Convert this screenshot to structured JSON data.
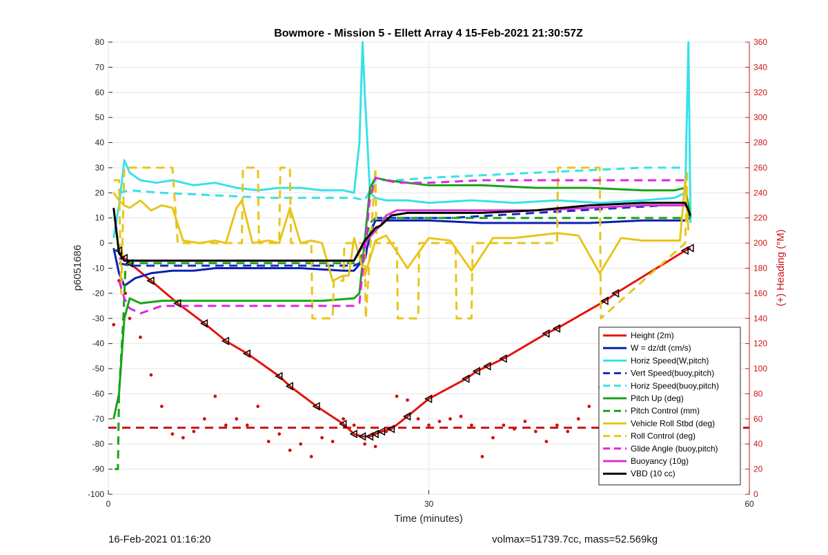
{
  "chart_data": {
    "type": "line",
    "title": "Bowmore - Mission 5 - Ellett Array 4 15-Feb-2021 21:30:57Z",
    "xlabel": "Time (minutes)",
    "ylabel": "p6051686",
    "y2label": "(+) Heading (°M)",
    "xlim": [
      0,
      60
    ],
    "ylim": [
      -100,
      80
    ],
    "y2lim": [
      0,
      360
    ],
    "x_ticks": [
      0,
      30,
      60
    ],
    "y_ticks": [
      -100,
      -90,
      -80,
      -70,
      -60,
      -50,
      -40,
      -30,
      -20,
      -10,
      0,
      10,
      20,
      30,
      40,
      50,
      60,
      70,
      80
    ],
    "y2_ticks": [
      0,
      20,
      40,
      60,
      80,
      100,
      120,
      140,
      160,
      180,
      200,
      220,
      240,
      260,
      280,
      300,
      320,
      340,
      360
    ],
    "grid": true,
    "legend_position": "bottom-right",
    "series": [
      {
        "name": "Height (2m)",
        "color": "#e3120b",
        "style": "solid",
        "x": [
          1.0,
          1.5,
          2.0,
          4.0,
          6.5,
          9.0,
          11.0,
          13.0,
          16.0,
          17.0,
          19.5,
          22.0,
          23.0,
          23.8,
          24.5,
          25.0,
          25.6,
          26.5,
          28.0,
          30.0,
          33.5,
          34.5,
          35.5,
          37.0,
          41.0,
          42.0,
          46.5,
          47.5,
          54.0,
          54.5
        ],
        "y": [
          -3,
          -6,
          -8,
          -15,
          -24,
          -32,
          -39,
          -44,
          -53,
          -57,
          -65,
          -72,
          -76,
          -77,
          -77,
          -76,
          -75,
          -74,
          -69,
          -62,
          -54,
          -51,
          -49,
          -46,
          -36,
          -34,
          -23,
          -20,
          -3,
          -2
        ]
      },
      {
        "name": "W = dz/dt (cm/s)",
        "color": "#0b1fb0",
        "style": "solid",
        "x": [
          0.5,
          1.0,
          1.5,
          2.5,
          4.0,
          6.0,
          8.0,
          10.0,
          14.0,
          18.0,
          22.0,
          23.0,
          24.0,
          24.6,
          25.0,
          27.0,
          30.0,
          35.0,
          40.0,
          45.0,
          50.0,
          54.0,
          54.5
        ],
        "y": [
          -2,
          -12,
          -17,
          -14,
          -12,
          -11,
          -11,
          -10,
          -10,
          -10,
          -11,
          -11,
          -6,
          5,
          9,
          9,
          9,
          8,
          8,
          8,
          9,
          9,
          10
        ]
      },
      {
        "name": "Horiz Speed(W,pitch)",
        "color": "#36e2e8",
        "style": "solid",
        "x": [
          0.5,
          1.0,
          1.5,
          2.0,
          3.0,
          4.5,
          6.0,
          8.0,
          10.0,
          12.0,
          14.0,
          16.0,
          18.0,
          20.0,
          22.0,
          23.0,
          23.5,
          23.8,
          24.0,
          24.5,
          25.0,
          26.0,
          28.0,
          30.0,
          34.0,
          38.0,
          42.0,
          46.0,
          50.0,
          53.0,
          54.0,
          54.3,
          54.5
        ],
        "y": [
          2,
          15,
          33,
          28,
          25,
          24,
          25,
          23,
          24,
          22,
          21,
          22,
          22,
          21,
          21,
          20,
          40,
          80,
          60,
          20,
          18,
          17,
          17,
          16,
          17,
          16,
          17,
          16,
          17,
          18,
          20,
          80,
          8
        ]
      },
      {
        "name": "Vert Speed(buoy,pitch)",
        "color": "#1428c8",
        "style": "dashed",
        "x": [
          1.0,
          2.0,
          5.0,
          10.0,
          15.0,
          20.0,
          23.0,
          24.0,
          24.6,
          25.0,
          28.0,
          32.0,
          36.0,
          40.0,
          44.0,
          48.0,
          52.0,
          54.0,
          54.5
        ],
        "y": [
          -8,
          -9,
          -9,
          -9,
          -9,
          -9,
          -9,
          -7,
          5,
          10,
          10,
          10,
          11,
          12,
          13,
          14,
          15,
          15,
          10
        ]
      },
      {
        "name": "Horiz Speed(buoy,pitch)",
        "color": "#36e2e8",
        "style": "dashed",
        "x": [
          1.0,
          2.0,
          5.0,
          10.0,
          15.0,
          20.0,
          23.0,
          24.0,
          25.0,
          27.0,
          30.0,
          35.0,
          40.0,
          45.0,
          50.0,
          54.0
        ],
        "y": [
          20,
          21,
          20,
          19,
          18,
          18,
          18,
          17,
          25,
          25,
          26,
          27,
          28,
          29,
          30,
          30
        ]
      },
      {
        "name": "Pitch Up (deg)",
        "color": "#17a317",
        "style": "solid",
        "x": [
          0.5,
          1.0,
          1.5,
          2.0,
          3.0,
          5.0,
          8.0,
          12.0,
          16.0,
          20.0,
          23.0,
          23.5,
          24.5,
          25.0,
          26.0,
          28.0,
          30.0,
          35.0,
          40.0,
          45.0,
          50.0,
          53.0,
          54.0,
          54.5
        ],
        "y": [
          -70,
          -60,
          -30,
          -22,
          -24,
          -23,
          -23,
          -23,
          -23,
          -23,
          -22,
          -20,
          22,
          26,
          25,
          24,
          23,
          23,
          22,
          22,
          21,
          21,
          22,
          10
        ]
      },
      {
        "name": "Pitch Control (mm)",
        "color": "#17a317",
        "style": "dashed",
        "x": [
          0.6,
          0.9,
          1.0,
          1.4,
          1.6,
          2.0,
          5.0,
          10.0,
          15.0,
          20.0,
          23.0,
          23.5,
          24.5,
          25.0,
          28.0,
          32.0,
          36.0,
          40.0,
          44.0,
          48.0,
          52.0,
          54.0
        ],
        "y": [
          -90,
          -90,
          -60,
          -30,
          -10,
          -8,
          -8,
          -8,
          -8,
          -8,
          -8,
          -8,
          8,
          10,
          10,
          10,
          10,
          10,
          10,
          10,
          10,
          10
        ]
      },
      {
        "name": "Vehicle Roll Stbd (deg)",
        "color": "#e8c51a",
        "style": "solid",
        "x": [
          0.5,
          1.0,
          1.5,
          2.0,
          3.0,
          4.0,
          5.0,
          6.0,
          7.0,
          8.5,
          10.0,
          11.0,
          12.0,
          12.5,
          13.5,
          15.0,
          16.0,
          17.0,
          18.0,
          19.0,
          20.0,
          21.0,
          22.0,
          22.5,
          23.0,
          24.0,
          25.0,
          26.0,
          28.0,
          30.0,
          32.0,
          34.0,
          36.0,
          38.0,
          40.0,
          42.0,
          44.0,
          46.0,
          48.0,
          50.0,
          52.0,
          53.5,
          54.0,
          54.3
        ],
        "y": [
          20,
          17,
          15,
          14,
          17,
          13,
          15,
          14,
          1,
          0,
          1,
          0,
          14,
          17,
          0,
          1,
          0,
          14,
          0,
          1,
          0,
          -15,
          -13,
          -13,
          2,
          -13,
          1,
          3,
          -10,
          2,
          1,
          -11,
          2,
          2,
          3,
          4,
          3,
          -12,
          2,
          1,
          1,
          1,
          25,
          5
        ]
      },
      {
        "name": "Roll Control (deg)",
        "color": "#e8c51a",
        "style": "dashed",
        "x": [
          0.5,
          1.0,
          1.2,
          1.5,
          6.0,
          6.5,
          12.5,
          12.6,
          14.0,
          14.1,
          16.0,
          16.1,
          17.0,
          17.1,
          19.0,
          19.1,
          21.0,
          21.1,
          22.0,
          22.1,
          24.0,
          24.1,
          25.0,
          25.1,
          27.0,
          27.1,
          29.0,
          29.1,
          32.5,
          32.6,
          34.0,
          34.1,
          36.0,
          36.1,
          42.0,
          42.1,
          46.0,
          46.1,
          54.0,
          54.2
        ],
        "y": [
          25,
          25,
          -20,
          30,
          30,
          0,
          0,
          30,
          30,
          0,
          0,
          30,
          30,
          0,
          0,
          -30,
          -30,
          -15,
          -15,
          0,
          0,
          -30,
          30,
          0,
          0,
          -30,
          -30,
          0,
          0,
          -30,
          -30,
          0,
          0,
          0,
          0,
          30,
          30,
          -30,
          0,
          30
        ]
      },
      {
        "name": "Glide Angle (buoy,pitch)",
        "color": "#e024e0",
        "style": "dashed",
        "x": [
          1.0,
          1.5,
          2.0,
          3.0,
          5.0,
          10.0,
          15.0,
          20.0,
          23.0,
          23.5,
          24.5,
          25.0,
          27.0,
          30.0,
          35.0,
          40.0,
          45.0,
          50.0,
          54.0
        ],
        "y": [
          -15,
          -22,
          -26,
          -28,
          -25,
          -25,
          -25,
          -25,
          -25,
          -24,
          18,
          26,
          24,
          24,
          25,
          25,
          25,
          25,
          25
        ]
      },
      {
        "name": "Buoyancy (10g)",
        "color": "#d830d8",
        "style": "solid",
        "x": [
          1.0,
          2.0,
          10.0,
          20.0,
          23.0,
          24.0,
          25.0,
          25.5,
          26.0,
          27.0,
          30.0,
          35.0,
          40.0,
          45.0,
          50.0,
          54.0
        ],
        "y": [
          -6,
          -7,
          -7,
          -7,
          -7,
          0,
          5,
          7,
          11,
          13,
          13,
          13,
          13,
          14,
          15,
          15
        ]
      },
      {
        "name": "VBD (10 cc)",
        "color": "#000000",
        "style": "solid",
        "x": [
          0.5,
          1.0,
          1.5,
          2.0,
          5.0,
          10.0,
          15.0,
          20.0,
          23.0,
          24.0,
          25.0,
          25.5,
          26.5,
          28.0,
          30.0,
          35.0,
          40.0,
          45.0,
          50.0,
          54.0,
          54.5
        ],
        "y": [
          14,
          -4,
          -7,
          -7,
          -7,
          -7,
          -7,
          -7,
          -7,
          1,
          6,
          7,
          11,
          12,
          12,
          12,
          13,
          15,
          16,
          16,
          11
        ]
      }
    ],
    "heading_series": {
      "name": "Heading",
      "axis": "right",
      "color": "#cc1111",
      "style": "dotted",
      "x": [
        0.5,
        1.0,
        1.6,
        2.0,
        3.0,
        4.0,
        5.0,
        6.0,
        7.0,
        8.0,
        9.0,
        10.0,
        11.0,
        12.0,
        13.0,
        14.0,
        15.0,
        16.0,
        17.0,
        18.0,
        19.0,
        20.0,
        21.0,
        22.0,
        23.0,
        24.0,
        25.0,
        26.0,
        27.0,
        28.0,
        29.0,
        30.0,
        31.0,
        32.0,
        33.0,
        34.0,
        35.0,
        36.0,
        37.0,
        38.0,
        39.0,
        40.0,
        41.0,
        42.0,
        43.0,
        44.0,
        45.0,
        46.0,
        47.0,
        48.0,
        49.0,
        50.0,
        51.0,
        52.0,
        53.0
      ],
      "y": [
        135,
        170,
        160,
        140,
        125,
        95,
        70,
        48,
        45,
        50,
        60,
        78,
        55,
        60,
        55,
        70,
        42,
        48,
        35,
        40,
        30,
        45,
        42,
        60,
        55,
        40,
        38,
        50,
        78,
        75,
        60,
        55,
        58,
        60,
        62,
        55,
        30,
        45,
        55,
        52,
        58,
        50,
        42,
        55,
        50,
        60,
        70,
        85,
        88,
        72,
        55,
        50,
        45,
        48,
        38
      ]
    },
    "heading_reference": {
      "name": "Heading target",
      "axis": "right",
      "color": "#cc1111",
      "style": "dashed",
      "value": 53
    }
  },
  "footer": {
    "left": "16-Feb-2021 01:16:20",
    "right": "volmax=51739.7cc, mass=52.569kg"
  }
}
